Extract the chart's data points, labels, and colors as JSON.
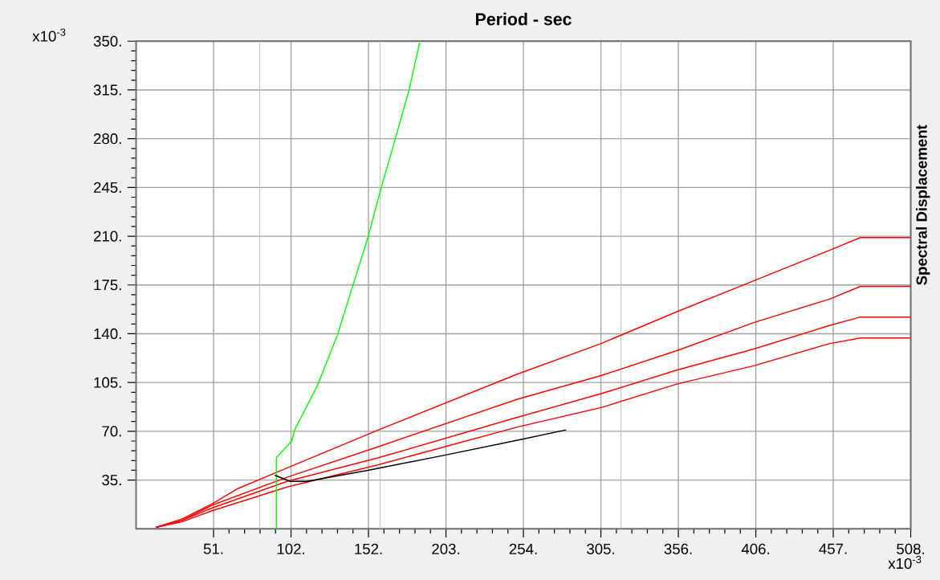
{
  "chart_data": {
    "type": "line",
    "title": "Period - sec",
    "ylabel": "Spectral Displacement",
    "annotations": [
      "x10$^{-3}$",
      "x10$^{-3}$"
    ],
    "xlim": [
      0,
      508
    ],
    "ylim": [
      0,
      350
    ],
    "xticks": [
      {
        "value": 50.8,
        "label": "51."
      },
      {
        "value": 101.6,
        "label": "102."
      },
      {
        "value": 152.4,
        "label": "152."
      },
      {
        "value": 203.2,
        "label": "203."
      },
      {
        "value": 254,
        "label": "254."
      },
      {
        "value": 304.8,
        "label": "305."
      },
      {
        "value": 355.6,
        "label": "356."
      },
      {
        "value": 406.4,
        "label": "406."
      },
      {
        "value": 457.2,
        "label": "457."
      },
      {
        "value": 508,
        "label": "508."
      }
    ],
    "yticks": [
      {
        "value": 35,
        "label": "35."
      },
      {
        "value": 70,
        "label": "70."
      },
      {
        "value": 105,
        "label": "105."
      },
      {
        "value": 140,
        "label": "140."
      },
      {
        "value": 175,
        "label": "175."
      },
      {
        "value": 210,
        "label": "210."
      },
      {
        "value": 245,
        "label": "245."
      },
      {
        "value": 280,
        "label": "280."
      },
      {
        "value": 315,
        "label": "315."
      },
      {
        "value": 350,
        "label": "350."
      }
    ],
    "grid": true,
    "ref_lines": [
      {
        "axis": "x",
        "value": 81,
        "color": "#c8c8c8"
      },
      {
        "axis": "x",
        "value": 160,
        "color": "#c8c8c8"
      },
      {
        "axis": "x",
        "value": 318,
        "color": "#c8c8c8"
      }
    ],
    "series": [
      {
        "color": "#ff0000",
        "x": [
          13,
          30,
          50,
          67,
          91,
          159,
          250,
          305,
          355,
          405,
          455,
          475,
          508
        ],
        "values": [
          1,
          7,
          18,
          29,
          40,
          71,
          111,
          133,
          156,
          178,
          200,
          209,
          209
        ]
      },
      {
        "color": "#ff0000",
        "x": [
          13,
          30,
          50,
          99,
          159,
          250,
          305,
          355,
          405,
          455,
          475,
          508
        ],
        "values": [
          1,
          6,
          17,
          37,
          59,
          93,
          110,
          128,
          148,
          165,
          174,
          174
        ]
      },
      {
        "color": "#ff0000",
        "x": [
          13,
          30,
          50,
          99,
          159,
          250,
          305,
          355,
          405,
          455,
          475,
          508
        ],
        "values": [
          1,
          6,
          15,
          34,
          51,
          80,
          97,
          114,
          129,
          146,
          152,
          152
        ]
      },
      {
        "color": "#ff0000",
        "x": [
          13,
          30,
          50,
          99,
          159,
          250,
          305,
          355,
          405,
          455,
          475,
          508
        ],
        "values": [
          1,
          5,
          13,
          30,
          46,
          73,
          87,
          104,
          117,
          133,
          137,
          137
        ]
      },
      {
        "color": "#00ff00",
        "x": [
          92,
          92,
          102,
          104,
          119,
          132,
          144,
          152,
          160,
          170,
          179,
          186
        ],
        "values": [
          0,
          51,
          63,
          71,
          103,
          139,
          181,
          209,
          242,
          280,
          315,
          349
        ]
      },
      {
        "color": "#000000",
        "x": [
          91,
          101,
          112,
          152,
          203,
          252,
          282
        ],
        "values": [
          38.5,
          34,
          34,
          42,
          53,
          64,
          71
        ]
      }
    ]
  }
}
